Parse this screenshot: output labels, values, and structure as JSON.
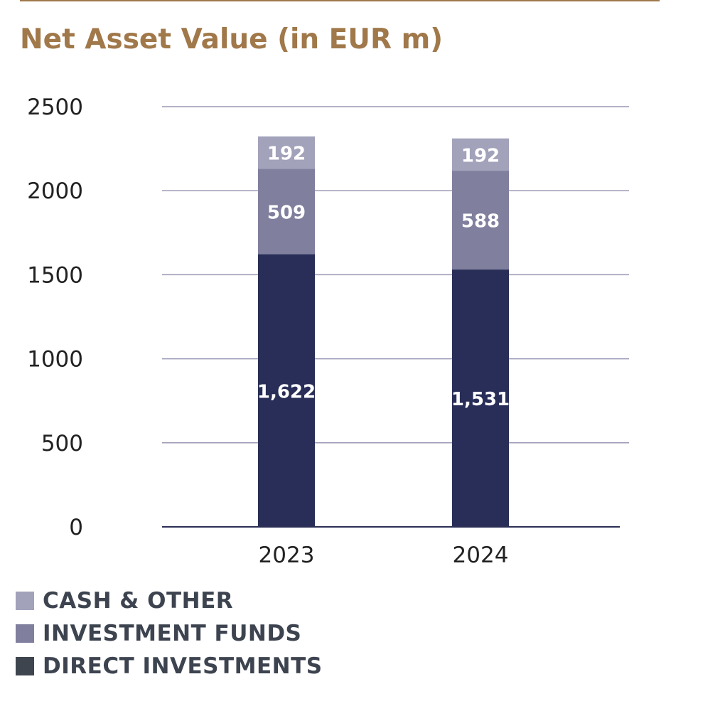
{
  "chart_data": {
    "type": "bar",
    "stacked": true,
    "title": "Net Asset Value (in EUR m)",
    "categories": [
      "2023",
      "2024"
    ],
    "ylim": [
      0,
      2500
    ],
    "yticks": [
      0,
      500,
      1000,
      1500,
      2000,
      2500
    ],
    "grid": true,
    "legend_position": "bottom-left",
    "series": [
      {
        "name": "DIRECT INVESTMENTS",
        "values": [
          1622,
          1531
        ],
        "labels": [
          "1,622",
          "1,531"
        ],
        "color": "#282e57",
        "legend_color": "#3e454f"
      },
      {
        "name": "INVESTMENT FUNDS",
        "values": [
          509,
          588
        ],
        "labels": [
          "509",
          "588"
        ],
        "color": "#807f9e",
        "legend_color": "#807f9e"
      },
      {
        "name": "CASH & OTHER",
        "values": [
          192,
          192
        ],
        "labels": [
          "192",
          "192"
        ],
        "color": "#a3a2bb",
        "legend_color": "#a3a2bb"
      }
    ],
    "legend_order": [
      "CASH & OTHER",
      "INVESTMENT FUNDS",
      "DIRECT INVESTMENTS"
    ],
    "colors": {
      "title": "#a0784a",
      "grid": "#9a98b5",
      "axis": "#2b2f55",
      "text": "#222222",
      "legend_text": "#3d4450"
    }
  }
}
